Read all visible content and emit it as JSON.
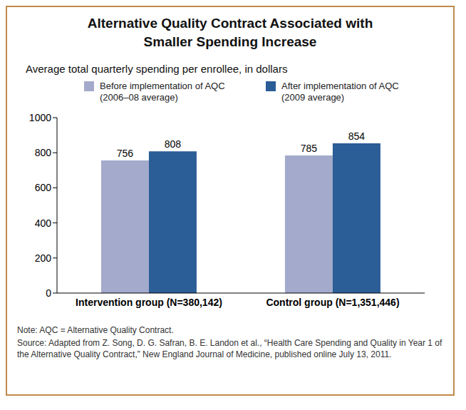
{
  "chart_data": {
    "type": "bar",
    "title": "Alternative Quality Contract Associated with Smaller Spending Increase",
    "subtitle": "Average total quarterly spending per enrollee, in dollars",
    "categories": [
      "Intervention group (N=380,142)",
      "Control group (N=1,351,446)"
    ],
    "series": [
      {
        "name": "Before implementation of AQC (2006–08 average)",
        "color": "#a3aacb",
        "values": [
          756,
          785
        ]
      },
      {
        "name": "After implementation of AQC (2009 average)",
        "color": "#2b5d97",
        "values": [
          808,
          854
        ]
      }
    ],
    "ylim": [
      0,
      1000
    ],
    "yticks": [
      0,
      200,
      400,
      600,
      800,
      1000
    ],
    "grid": false,
    "data_labels": true,
    "legend": "top",
    "notes": [
      "Note: AQC = Alternative Quality Contract.",
      "Source: Adapted from Z. Song, D. G. Safran, B. E. Landon et al., “Health Care Spending and Quality in Year 1 of the Alternative Quality Contract,” New England Journal of Medicine, published online July 13, 2011."
    ]
  }
}
